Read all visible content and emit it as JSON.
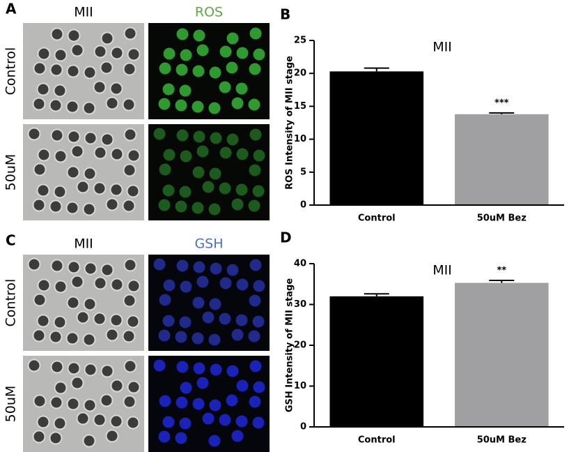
{
  "panels": [
    {
      "label": "A",
      "columns": [
        "MII",
        "ROS"
      ],
      "rows": [
        "Control",
        "50uM"
      ]
    },
    {
      "label": "C",
      "columns": [
        "MII",
        "GSH"
      ],
      "rows": [
        "Control",
        "50uM"
      ]
    }
  ],
  "chart_data": [
    {
      "type": "bar",
      "panel_label": "B",
      "title": "MII",
      "ylabel": "ROS Intensity of MII stage",
      "categories": [
        "Control",
        "50uM Bez"
      ],
      "values": [
        20.3,
        13.8
      ],
      "errors": [
        0.5,
        0.2
      ],
      "colors": [
        "#000000",
        "#a0a0a2"
      ],
      "annotations": [
        null,
        "***"
      ],
      "ylim": [
        0,
        25
      ],
      "yticks": [
        0,
        5,
        10,
        15,
        20,
        25
      ]
    },
    {
      "type": "bar",
      "panel_label": "D",
      "title": "MII",
      "ylabel": "GSH Intensity of MII stage",
      "categories": [
        "Control",
        "50uM Bez"
      ],
      "values": [
        32.0,
        35.3
      ],
      "errors": [
        0.6,
        0.6
      ],
      "colors": [
        "#000000",
        "#a0a0a2"
      ],
      "annotations": [
        null,
        "**"
      ],
      "ylim": [
        0,
        40
      ],
      "yticks": [
        0,
        10,
        20,
        30,
        40
      ]
    }
  ]
}
